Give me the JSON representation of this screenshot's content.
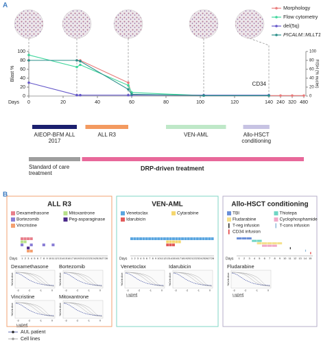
{
  "panel_labels": [
    "A",
    "B"
  ],
  "chart_data": {
    "type": "line",
    "xlabel": "Days",
    "ylabel": "Blast %",
    "y2label": "FISH (% nuclei)",
    "x": [
      0,
      28,
      30,
      58,
      60,
      102,
      140,
      240,
      320,
      480
    ],
    "xlim": [
      0,
      480
    ],
    "xticks": [
      0,
      20,
      40,
      60,
      80,
      100,
      120,
      140,
      240,
      320,
      480
    ],
    "ylim": [
      0,
      100
    ],
    "yticks": [
      0,
      20,
      40,
      60,
      80,
      100
    ],
    "y2lim": [
      0,
      100
    ],
    "y2ticks": [
      0,
      20,
      40,
      60,
      80,
      100
    ],
    "legend": "upper right",
    "annotation": "CD34",
    "series": [
      {
        "name": "Morphology",
        "color": "#e87a7a",
        "values": [
          80,
          80,
          80,
          30,
          3,
          1,
          1,
          1,
          1,
          1
        ]
      },
      {
        "name": "Flow cytometry",
        "color": "#3fd69c",
        "values": [
          92,
          65,
          70,
          24,
          8,
          1,
          1,
          null,
          null,
          null
        ]
      },
      {
        "name": "del(5q)",
        "color": "#6457c9",
        "values": [
          30,
          2,
          2,
          2,
          2,
          2,
          2,
          null,
          null,
          null
        ]
      },
      {
        "name": "PICALM::MLLT10",
        "color": "#2a8f8a",
        "axis": "y2",
        "values": [
          80,
          80,
          78,
          15,
          4,
          1,
          1,
          null,
          null,
          null
        ]
      }
    ]
  },
  "treatments": [
    {
      "label": "AIEOP-BFM ALL 2017",
      "span": [
        2,
        28
      ],
      "color": "#1b1f6e"
    },
    {
      "label": "ALL R3",
      "span": [
        33,
        58
      ],
      "color": "#f39a60"
    },
    {
      "label": "VEN-AML",
      "span": [
        80,
        115
      ],
      "color": "#bfe8c8"
    },
    {
      "label": "Allo-HSCT conditioning",
      "span": [
        125,
        145
      ],
      "color": "#c7c3e3"
    }
  ],
  "phases": [
    {
      "label": "Standard of care treatment",
      "span": [
        0,
        30
      ],
      "color": "#9e9e9e"
    },
    {
      "label": "DRP-driven treatment",
      "span": [
        31,
        480
      ],
      "color": "#e8689a"
    }
  ],
  "panel_b": {
    "plot_xticks": [
      -3,
      -2,
      -1,
      0
    ],
    "plot_ylabel": "%Cells Alive",
    "plot_xlabel": "Log[uM]",
    "legend": [
      "AUL patient",
      "Cell lines"
    ],
    "boxes": [
      {
        "title": "ALL R3",
        "border": "#f0a070",
        "days_label": "Days",
        "days": [
          1,
          2,
          3,
          4,
          5,
          6,
          7,
          8,
          9,
          10,
          11,
          12,
          13,
          14,
          15,
          16,
          17,
          18,
          19,
          20,
          21,
          22,
          23,
          24,
          25,
          26,
          27,
          28
        ],
        "drugs": [
          {
            "name": "Dexamethasone",
            "color": "#e8808c",
            "days": [
              1,
              2,
              3,
              4
            ]
          },
          {
            "name": "Mitoxantrone",
            "color": "#b8e08a",
            "days": [
              1,
              2
            ]
          },
          {
            "name": "Bortezomib",
            "color": "#8a7ed6",
            "days": [
              1,
              4,
              8,
              11
            ]
          },
          {
            "name": "Peg-asparaginase",
            "color": "#4b2a8a",
            "days": [
              3
            ]
          },
          {
            "name": "Vincristine",
            "color": "#f4a070",
            "days": [
              3,
              4
            ]
          }
        ],
        "plots": [
          "Dexamethasone",
          "Bortezomib",
          "Vincristine",
          "Mitoxantrone"
        ]
      },
      {
        "title": "VEN-AML",
        "border": "#7fd6c4",
        "days_label": "Days",
        "days": [
          1,
          2,
          3,
          4,
          5,
          6,
          7,
          8,
          9,
          10,
          11,
          12,
          13,
          14,
          15,
          16,
          17,
          18,
          19,
          20,
          21,
          22,
          23,
          24,
          25,
          26,
          27,
          28
        ],
        "drugs": [
          {
            "name": "Venetoclax",
            "color": "#5aa6e0",
            "days": [
              1,
              2,
              3,
              4,
              5,
              6,
              7,
              8,
              9,
              10,
              11,
              12,
              13,
              14,
              15,
              16,
              17,
              18,
              19,
              20,
              21,
              22,
              23,
              24,
              25,
              26,
              27,
              28
            ]
          },
          {
            "name": "Cytarabine",
            "color": "#f5d76e",
            "days": [
              13,
              14,
              15,
              16,
              17
            ]
          },
          {
            "name": "Idarubicin",
            "color": "#e25b5b",
            "days": [
              13,
              14,
              15
            ]
          }
        ],
        "plots": [
          "Venetoclax",
          "Idarubicin"
        ]
      },
      {
        "title": "Allo-HSCT  conditioning",
        "border": "#b4aec8",
        "days_label": "Days",
        "days": [
          1,
          2,
          3,
          4,
          5,
          6,
          7,
          8,
          9,
          10,
          11,
          12,
          13,
          14,
          15
        ],
        "drugs": [
          {
            "name": "TBI",
            "color": "#6a8fd8",
            "days": [
              1,
              2,
              3
            ]
          },
          {
            "name": "Thiotepa",
            "color": "#6fd6c4",
            "days": [
              4,
              5
            ]
          },
          {
            "name": "Fludarabine",
            "color": "#f5e08a",
            "days": [
              5,
              6,
              7,
              8,
              9
            ]
          },
          {
            "name": "Cyclophosphamide",
            "color": "#f0a8c8",
            "days": [
              6,
              7,
              8
            ]
          },
          {
            "name": "T-reg infusion",
            "color": "#222222",
            "marker": "bar",
            "days": [
              11
            ]
          },
          {
            "name": "T-cons infusion",
            "color": "#8fb8d8",
            "marker": "bar",
            "days": [
              14
            ]
          },
          {
            "name": "CD34 infusion",
            "color": "#e03030",
            "marker": "bar",
            "days": [
              15
            ]
          }
        ],
        "plots": [
          "Fludarabine"
        ]
      }
    ]
  }
}
